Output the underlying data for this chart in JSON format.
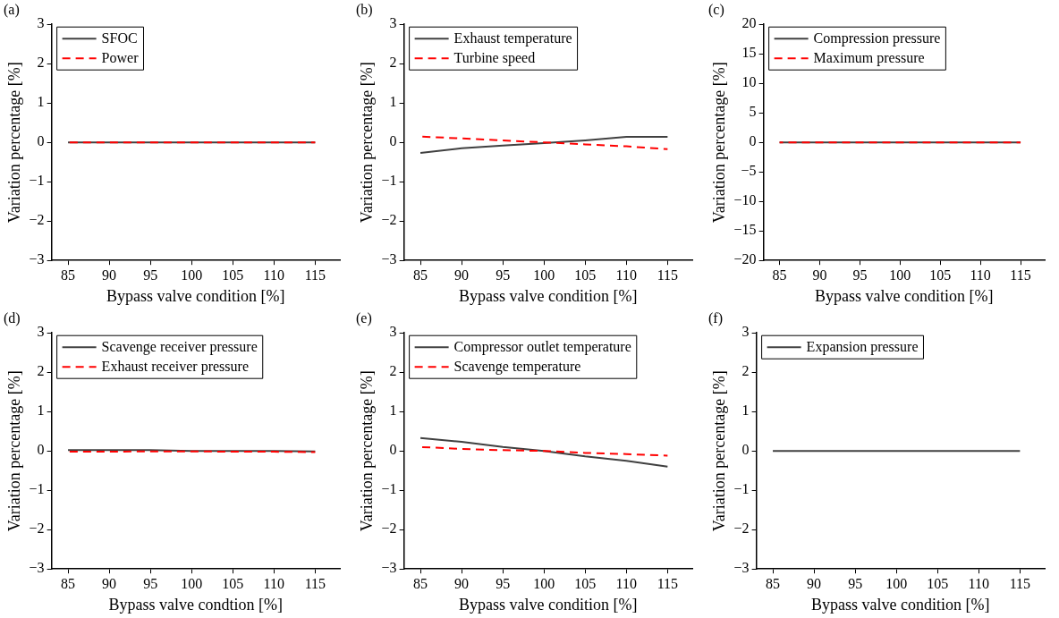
{
  "chart_data": [
    {
      "type": "line",
      "title": "(a)",
      "xlabel": "Bypass valve condition [%]",
      "ylabel": "Variation percentage [%]",
      "x": [
        85,
        90,
        95,
        100,
        105,
        110,
        115
      ],
      "xlim": [
        83,
        118
      ],
      "xticks": [
        85,
        90,
        95,
        100,
        105,
        110,
        115
      ],
      "ylim": [
        -3,
        3
      ],
      "yticks": [
        -3,
        -2,
        -1,
        0,
        1,
        2,
        3
      ],
      "grid": false,
      "legend": "top left",
      "marker": "none",
      "series": [
        {
          "name": "SFOC",
          "color": "#404040",
          "line_style": "solid",
          "values": [
            0,
            0,
            0,
            0,
            0,
            0,
            0
          ]
        },
        {
          "name": "Power",
          "color": "#ff0000",
          "line_style": "dashed",
          "values": [
            0,
            0,
            0,
            0,
            0,
            0,
            0
          ]
        }
      ]
    },
    {
      "type": "line",
      "title": "(b)",
      "xlabel": "Bypass valve condition [%]",
      "ylabel": "Variation percentage [%]",
      "x": [
        85,
        90,
        95,
        100,
        105,
        110,
        115
      ],
      "xlim": [
        83,
        118
      ],
      "xticks": [
        85,
        90,
        95,
        100,
        105,
        110,
        115
      ],
      "ylim": [
        -3,
        3
      ],
      "yticks": [
        -3,
        -2,
        -1,
        0,
        1,
        2,
        3
      ],
      "grid": false,
      "legend": "top left",
      "marker": "none",
      "series": [
        {
          "name": "Exhaust temperature",
          "color": "#404040",
          "line_style": "solid",
          "values": [
            -0.27,
            -0.15,
            -0.08,
            -0.02,
            0.05,
            0.14,
            0.14
          ]
        },
        {
          "name": "Turbine speed",
          "color": "#ff0000",
          "line_style": "dashed",
          "values": [
            0.15,
            0.1,
            0.05,
            0,
            -0.05,
            -0.1,
            -0.17
          ]
        }
      ]
    },
    {
      "type": "line",
      "title": "(c)",
      "xlabel": "Bypass valve condition [%]",
      "ylabel": "Variation percentage [%]",
      "x": [
        85,
        90,
        95,
        100,
        105,
        110,
        115
      ],
      "xlim": [
        83,
        118
      ],
      "xticks": [
        85,
        90,
        95,
        100,
        105,
        110,
        115
      ],
      "ylim": [
        -20,
        20
      ],
      "yticks": [
        -20,
        -15,
        -10,
        -5,
        0,
        5,
        10,
        15,
        20
      ],
      "grid": false,
      "legend": "top left",
      "marker": "none",
      "series": [
        {
          "name": "Compression pressure",
          "color": "#404040",
          "line_style": "solid",
          "values": [
            0,
            0,
            0,
            0,
            0,
            0,
            0
          ]
        },
        {
          "name": "Maximum pressure",
          "color": "#ff0000",
          "line_style": "dashed",
          "values": [
            0,
            0,
            0,
            0,
            0,
            0,
            0
          ]
        }
      ]
    },
    {
      "type": "line",
      "title": "(d)",
      "xlabel": "Bypass valve condtion [%]",
      "ylabel": "Variation percentage [%]",
      "x": [
        85,
        90,
        95,
        100,
        105,
        110,
        115
      ],
      "xlim": [
        83,
        118
      ],
      "xticks": [
        85,
        90,
        95,
        100,
        105,
        110,
        115
      ],
      "ylim": [
        -3,
        3
      ],
      "yticks": [
        -3,
        -2,
        -1,
        0,
        1,
        2,
        3
      ],
      "grid": false,
      "legend": "top left",
      "marker": "none",
      "series": [
        {
          "name": "Scavenge receiver pressure",
          "color": "#404040",
          "line_style": "solid",
          "values": [
            0.02,
            0.02,
            0.02,
            0,
            0,
            0,
            -0.01
          ]
        },
        {
          "name": "Exhaust receiver pressure",
          "color": "#ff0000",
          "line_style": "dashed",
          "values": [
            -0.02,
            -0.02,
            -0.01,
            -0.01,
            -0.02,
            -0.02,
            -0.03
          ]
        }
      ]
    },
    {
      "type": "line",
      "title": "(e)",
      "xlabel": "Bypass valve condition [%]",
      "ylabel": "Variation percentage [%]",
      "x": [
        85,
        90,
        95,
        100,
        105,
        110,
        115
      ],
      "xlim": [
        83,
        118
      ],
      "xticks": [
        85,
        90,
        95,
        100,
        105,
        110,
        115
      ],
      "ylim": [
        -3,
        3
      ],
      "yticks": [
        -3,
        -2,
        -1,
        0,
        1,
        2,
        3
      ],
      "grid": false,
      "legend": "top left",
      "marker": "none",
      "series": [
        {
          "name": "Compressor outlet temperature",
          "color": "#404040",
          "line_style": "solid",
          "values": [
            0.33,
            0.23,
            0.1,
            0,
            -0.14,
            -0.25,
            -0.4
          ]
        },
        {
          "name": "Scavenge temperature",
          "color": "#ff0000",
          "line_style": "dashed",
          "values": [
            0.1,
            0.05,
            0.02,
            0,
            -0.05,
            -0.08,
            -0.12
          ]
        }
      ]
    },
    {
      "type": "line",
      "title": "(f)",
      "xlabel": "Bypass valve condition [%]",
      "ylabel": "Variation percentage [%]",
      "x": [
        85,
        90,
        95,
        100,
        105,
        110,
        115
      ],
      "xlim": [
        83,
        118
      ],
      "xticks": [
        85,
        90,
        95,
        100,
        105,
        110,
        115
      ],
      "ylim": [
        -3,
        3
      ],
      "yticks": [
        -3,
        -2,
        -1,
        0,
        1,
        2,
        3
      ],
      "grid": false,
      "legend": "top left",
      "marker": "none",
      "series": [
        {
          "name": "Expansion pressure",
          "color": "#404040",
          "line_style": "solid",
          "values": [
            0,
            0,
            0,
            0,
            0,
            0,
            0
          ]
        }
      ]
    }
  ]
}
